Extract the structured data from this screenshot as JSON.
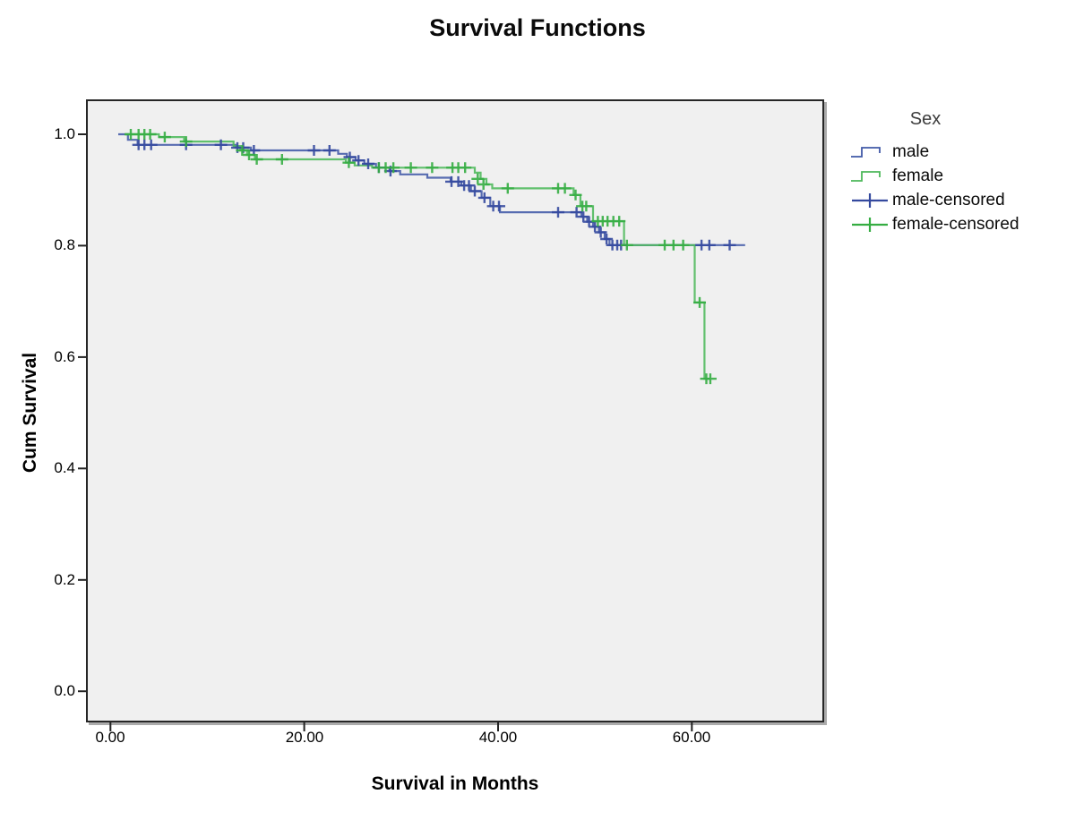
{
  "legend": {
    "title": "Sex",
    "items": [
      {
        "label": "male",
        "type": "step",
        "color": "#4159a7"
      },
      {
        "label": "female",
        "type": "step",
        "color": "#4cb85a"
      },
      {
        "label": "male-censored",
        "type": "plus",
        "color": "#34499e"
      },
      {
        "label": "female-censored",
        "type": "plus",
        "color": "#35ad42"
      }
    ]
  },
  "chart_data": {
    "type": "line",
    "subtype": "kaplan-meier-step-survival",
    "title": "Survival Functions",
    "xlabel": "Survival in Months",
    "ylabel": "Cum Survival",
    "legend_title": "Sex",
    "legend_position": "right",
    "grid": false,
    "plot_bg": "#f0f0f0",
    "xlim": [
      -2.3,
      73.5
    ],
    "ylim": [
      -0.053,
      1.06
    ],
    "x_ticks": [
      {
        "value": 0,
        "label": "0.00"
      },
      {
        "value": 20,
        "label": "20.00"
      },
      {
        "value": 40,
        "label": "40.00"
      },
      {
        "value": 60,
        "label": "60.00"
      }
    ],
    "y_ticks": [
      {
        "value": 0.0,
        "label": "0.0"
      },
      {
        "value": 0.2,
        "label": "0.2"
      },
      {
        "value": 0.4,
        "label": "0.4"
      },
      {
        "value": 0.6,
        "label": "0.6"
      },
      {
        "value": 0.8,
        "label": "0.8"
      },
      {
        "value": 1.0,
        "label": "1.0"
      }
    ],
    "series": [
      {
        "name": "male",
        "color": "#4159a7",
        "steps": [
          [
            0.8,
            1.0
          ],
          [
            1.8,
            0.99
          ],
          [
            2.8,
            0.981
          ],
          [
            12.9,
            0.976
          ],
          [
            14.5,
            0.971
          ],
          [
            23.5,
            0.965
          ],
          [
            24.4,
            0.959
          ],
          [
            25.3,
            0.953
          ],
          [
            26.2,
            0.947
          ],
          [
            27.4,
            0.94
          ],
          [
            28.8,
            0.934
          ],
          [
            29.9,
            0.928
          ],
          [
            32.7,
            0.922
          ],
          [
            35.1,
            0.915
          ],
          [
            36.2,
            0.908
          ],
          [
            37.2,
            0.898
          ],
          [
            38.3,
            0.886
          ],
          [
            39.2,
            0.871
          ],
          [
            40.2,
            0.86
          ],
          [
            48.6,
            0.852
          ],
          [
            49.2,
            0.843
          ],
          [
            49.8,
            0.834
          ],
          [
            50.4,
            0.824
          ],
          [
            51.0,
            0.812
          ],
          [
            51.5,
            0.801
          ],
          [
            65.5,
            0.801
          ]
        ]
      },
      {
        "name": "female",
        "color": "#4cb85a",
        "steps": [
          [
            1.6,
            1.0
          ],
          [
            5.0,
            0.995
          ],
          [
            7.6,
            0.987
          ],
          [
            12.7,
            0.979
          ],
          [
            13.4,
            0.971
          ],
          [
            14.1,
            0.963
          ],
          [
            14.9,
            0.955
          ],
          [
            24.3,
            0.949
          ],
          [
            25.2,
            0.944
          ],
          [
            27.0,
            0.94
          ],
          [
            37.6,
            0.931
          ],
          [
            38.2,
            0.92
          ],
          [
            38.8,
            0.91
          ],
          [
            39.4,
            0.903
          ],
          [
            47.8,
            0.891
          ],
          [
            48.5,
            0.871
          ],
          [
            49.8,
            0.844
          ],
          [
            53.0,
            0.801
          ],
          [
            60.3,
            0.698
          ],
          [
            61.3,
            0.561
          ],
          [
            61.9,
            0.561
          ]
        ]
      }
    ],
    "censored": [
      {
        "name": "male-censored",
        "color": "#34499e",
        "points": [
          [
            2.9,
            0.981
          ],
          [
            3.5,
            0.981
          ],
          [
            4.2,
            0.981
          ],
          [
            7.8,
            0.981
          ],
          [
            11.4,
            0.981
          ],
          [
            13.1,
            0.976
          ],
          [
            13.7,
            0.976
          ],
          [
            14.8,
            0.971
          ],
          [
            21.0,
            0.971
          ],
          [
            22.6,
            0.971
          ],
          [
            24.7,
            0.959
          ],
          [
            25.6,
            0.953
          ],
          [
            26.6,
            0.947
          ],
          [
            27.7,
            0.94
          ],
          [
            28.9,
            0.934
          ],
          [
            35.2,
            0.915
          ],
          [
            35.9,
            0.915
          ],
          [
            36.5,
            0.908
          ],
          [
            37.0,
            0.908
          ],
          [
            37.6,
            0.898
          ],
          [
            38.6,
            0.886
          ],
          [
            39.5,
            0.871
          ],
          [
            40.1,
            0.871
          ],
          [
            46.2,
            0.86
          ],
          [
            48.1,
            0.86
          ],
          [
            48.8,
            0.852
          ],
          [
            49.4,
            0.843
          ],
          [
            50.0,
            0.834
          ],
          [
            50.6,
            0.824
          ],
          [
            51.2,
            0.812
          ],
          [
            51.8,
            0.801
          ],
          [
            52.3,
            0.801
          ],
          [
            52.7,
            0.801
          ],
          [
            61.0,
            0.801
          ],
          [
            61.8,
            0.801
          ],
          [
            63.9,
            0.801
          ]
        ]
      },
      {
        "name": "female-censored",
        "color": "#35ad42",
        "points": [
          [
            2.1,
            1.0
          ],
          [
            2.9,
            1.0
          ],
          [
            3.5,
            1.0
          ],
          [
            4.1,
            1.0
          ],
          [
            5.6,
            0.995
          ],
          [
            7.8,
            0.987
          ],
          [
            13.6,
            0.971
          ],
          [
            14.3,
            0.963
          ],
          [
            15.1,
            0.955
          ],
          [
            17.7,
            0.955
          ],
          [
            24.6,
            0.949
          ],
          [
            27.7,
            0.94
          ],
          [
            28.4,
            0.94
          ],
          [
            29.2,
            0.94
          ],
          [
            31.0,
            0.94
          ],
          [
            33.2,
            0.94
          ],
          [
            35.3,
            0.94
          ],
          [
            35.9,
            0.94
          ],
          [
            36.6,
            0.94
          ],
          [
            37.9,
            0.92
          ],
          [
            38.5,
            0.91
          ],
          [
            41.0,
            0.903
          ],
          [
            46.2,
            0.903
          ],
          [
            46.9,
            0.903
          ],
          [
            48.0,
            0.891
          ],
          [
            48.7,
            0.871
          ],
          [
            49.1,
            0.871
          ],
          [
            50.3,
            0.844
          ],
          [
            50.8,
            0.844
          ],
          [
            51.3,
            0.844
          ],
          [
            51.9,
            0.844
          ],
          [
            52.5,
            0.844
          ],
          [
            53.3,
            0.801
          ],
          [
            57.2,
            0.801
          ],
          [
            58.1,
            0.801
          ],
          [
            59.1,
            0.801
          ],
          [
            60.8,
            0.698
          ],
          [
            61.5,
            0.561
          ],
          [
            61.9,
            0.561
          ]
        ]
      }
    ]
  }
}
